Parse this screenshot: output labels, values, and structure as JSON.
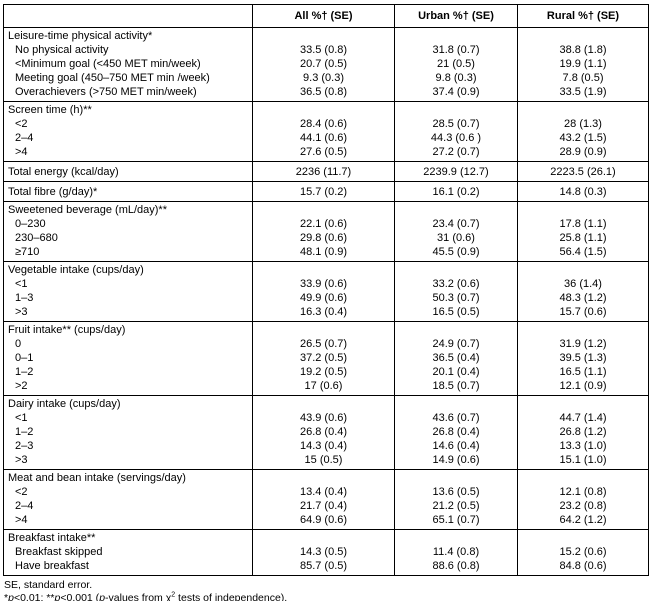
{
  "colors": {
    "background": "#ffffff",
    "text": "#000000",
    "border": "#000000"
  },
  "table": {
    "columns": [
      "All %† (SE)",
      "Urban %† (SE)",
      "Rural %† (SE)"
    ],
    "corner_label": "",
    "sections": [
      {
        "title": "Leisure-time physical activity*",
        "rows": [
          {
            "label": "No physical activity",
            "values": [
              "33.5 (0.8)",
              "31.8 (0.7)",
              "38.8 (1.8)"
            ]
          },
          {
            "label": "<Minimum goal (<450 MET min/week)",
            "values": [
              "20.7 (0.5)",
              "21 (0.5)",
              "19.9 (1.1)"
            ]
          },
          {
            "label": "Meeting goal (450–750 MET min /week)",
            "values": [
              "9.3 (0.3)",
              "9.8 (0.3)",
              "7.8 (0.5)"
            ]
          },
          {
            "label": "Overachievers (>750 MET min/week)",
            "values": [
              "36.5 (0.8)",
              "37.4 (0.9)",
              "33.5 (1.9)"
            ]
          }
        ]
      },
      {
        "title": "Screen time (h)**",
        "rows": [
          {
            "label": "<2",
            "values": [
              "28.4 (0.6)",
              "28.5 (0.7)",
              "28 (1.3)"
            ]
          },
          {
            "label": "2–4",
            "values": [
              "44.1 (0.6)",
              "44.3 (0.6 )",
              "43.2 (1.5)"
            ]
          },
          {
            "label": ">4",
            "values": [
              "27.6 (0.5)",
              "27.2 (0.7)",
              "28.9 (0.9)"
            ]
          }
        ]
      },
      {
        "title": "Total energy (kcal/day)",
        "values": [
          "2236 (11.7)",
          "2239.9 (12.7)",
          "2223.5 (26.1)"
        ]
      },
      {
        "title": "Total fibre (g/day)*",
        "values": [
          "15.7 (0.2)",
          "16.1 (0.2)",
          "14.8 (0.3)"
        ]
      },
      {
        "title": "Sweetened beverage (mL/day)**",
        "rows": [
          {
            "label": "0–230",
            "values": [
              "22.1 (0.6)",
              "23.4 (0.7)",
              "17.8 (1.1)"
            ]
          },
          {
            "label": "230–680",
            "values": [
              "29.8 (0.6)",
              "31 (0.6)",
              "25.8 (1.1)"
            ]
          },
          {
            "label": "≥710",
            "values": [
              "48.1 (0.9)",
              "45.5 (0.9)",
              "56.4 (1.5)"
            ]
          }
        ]
      },
      {
        "title": "Vegetable intake (cups/day)",
        "rows": [
          {
            "label": "<1",
            "values": [
              "33.9 (0.6)",
              "33.2 (0.6)",
              "36 (1.4)"
            ]
          },
          {
            "label": "1–3",
            "values": [
              "49.9 (0.6)",
              "50.3 (0.7)",
              "48.3 (1.2)"
            ]
          },
          {
            "label": ">3",
            "values": [
              "16.3 (0.4)",
              "16.5 (0.5)",
              "15.7 (0.6)"
            ]
          }
        ]
      },
      {
        "title": "Fruit intake** (cups/day)",
        "rows": [
          {
            "label": "0",
            "values": [
              "26.5 (0.7)",
              "24.9 (0.7)",
              "31.9 (1.2)"
            ]
          },
          {
            "label": "0–1",
            "values": [
              "37.2 (0.5)",
              "36.5 (0.4)",
              "39.5 (1.3)"
            ]
          },
          {
            "label": "1–2",
            "values": [
              "19.2 (0.5)",
              "20.1 (0.4)",
              "16.5 (1.1)"
            ]
          },
          {
            "label": ">2",
            "values": [
              "17 (0.6)",
              "18.5 (0.7)",
              "12.1 (0.9)"
            ]
          }
        ]
      },
      {
        "title": "Dairy intake (cups/day)",
        "rows": [
          {
            "label": "<1",
            "values": [
              "43.9 (0.6)",
              "43.6 (0.7)",
              "44.7 (1.4)"
            ]
          },
          {
            "label": "1–2",
            "values": [
              "26.8 (0.4)",
              "26.8 (0.4)",
              "26.8 (1.2)"
            ]
          },
          {
            "label": "2–3",
            "values": [
              "14.3 (0.4)",
              "14.6 (0.4)",
              "13.3 (1.0)"
            ]
          },
          {
            "label": ">3",
            "values": [
              "15 (0.5)",
              "14.9 (0.6)",
              "15.1 (1.0)"
            ]
          }
        ]
      },
      {
        "title": "Meat and bean intake (servings/day)",
        "rows": [
          {
            "label": "<2",
            "values": [
              "13.4 (0.4)",
              "13.6 (0.5)",
              "12.1 (0.8)"
            ]
          },
          {
            "label": "2–4",
            "values": [
              "21.7 (0.4)",
              "21.2 (0.5)",
              "23.2 (0.8)"
            ]
          },
          {
            "label": ">4",
            "values": [
              "64.9 (0.6)",
              "65.1 (0.7)",
              "64.2 (1.2)"
            ]
          }
        ]
      },
      {
        "title": "Breakfast intake**",
        "rows": [
          {
            "label": "Breakfast skipped",
            "values": [
              "14.3 (0.5)",
              "11.4 (0.8)",
              "15.2 (0.6)"
            ]
          },
          {
            "label": "Have breakfast",
            "values": [
              "85.7 (0.5)",
              "88.6 (0.8)",
              "84.8 (0.6)"
            ]
          }
        ]
      }
    ]
  },
  "footnotes": [
    {
      "segments": [
        {
          "text": "SE, standard error."
        }
      ]
    },
    {
      "segments": [
        {
          "text": "*"
        },
        {
          "text": "p",
          "italic": true
        },
        {
          "text": "<0.01; **"
        },
        {
          "text": "p",
          "italic": true
        },
        {
          "text": "<0.001 ("
        },
        {
          "text": "p",
          "italic": true
        },
        {
          "text": "-values from χ"
        },
        {
          "text": "2",
          "sup": true
        },
        {
          "text": " tests of independence)."
        }
      ]
    },
    {
      "segments": [
        {
          "text": "†Weighted percentages."
        }
      ]
    }
  ]
}
